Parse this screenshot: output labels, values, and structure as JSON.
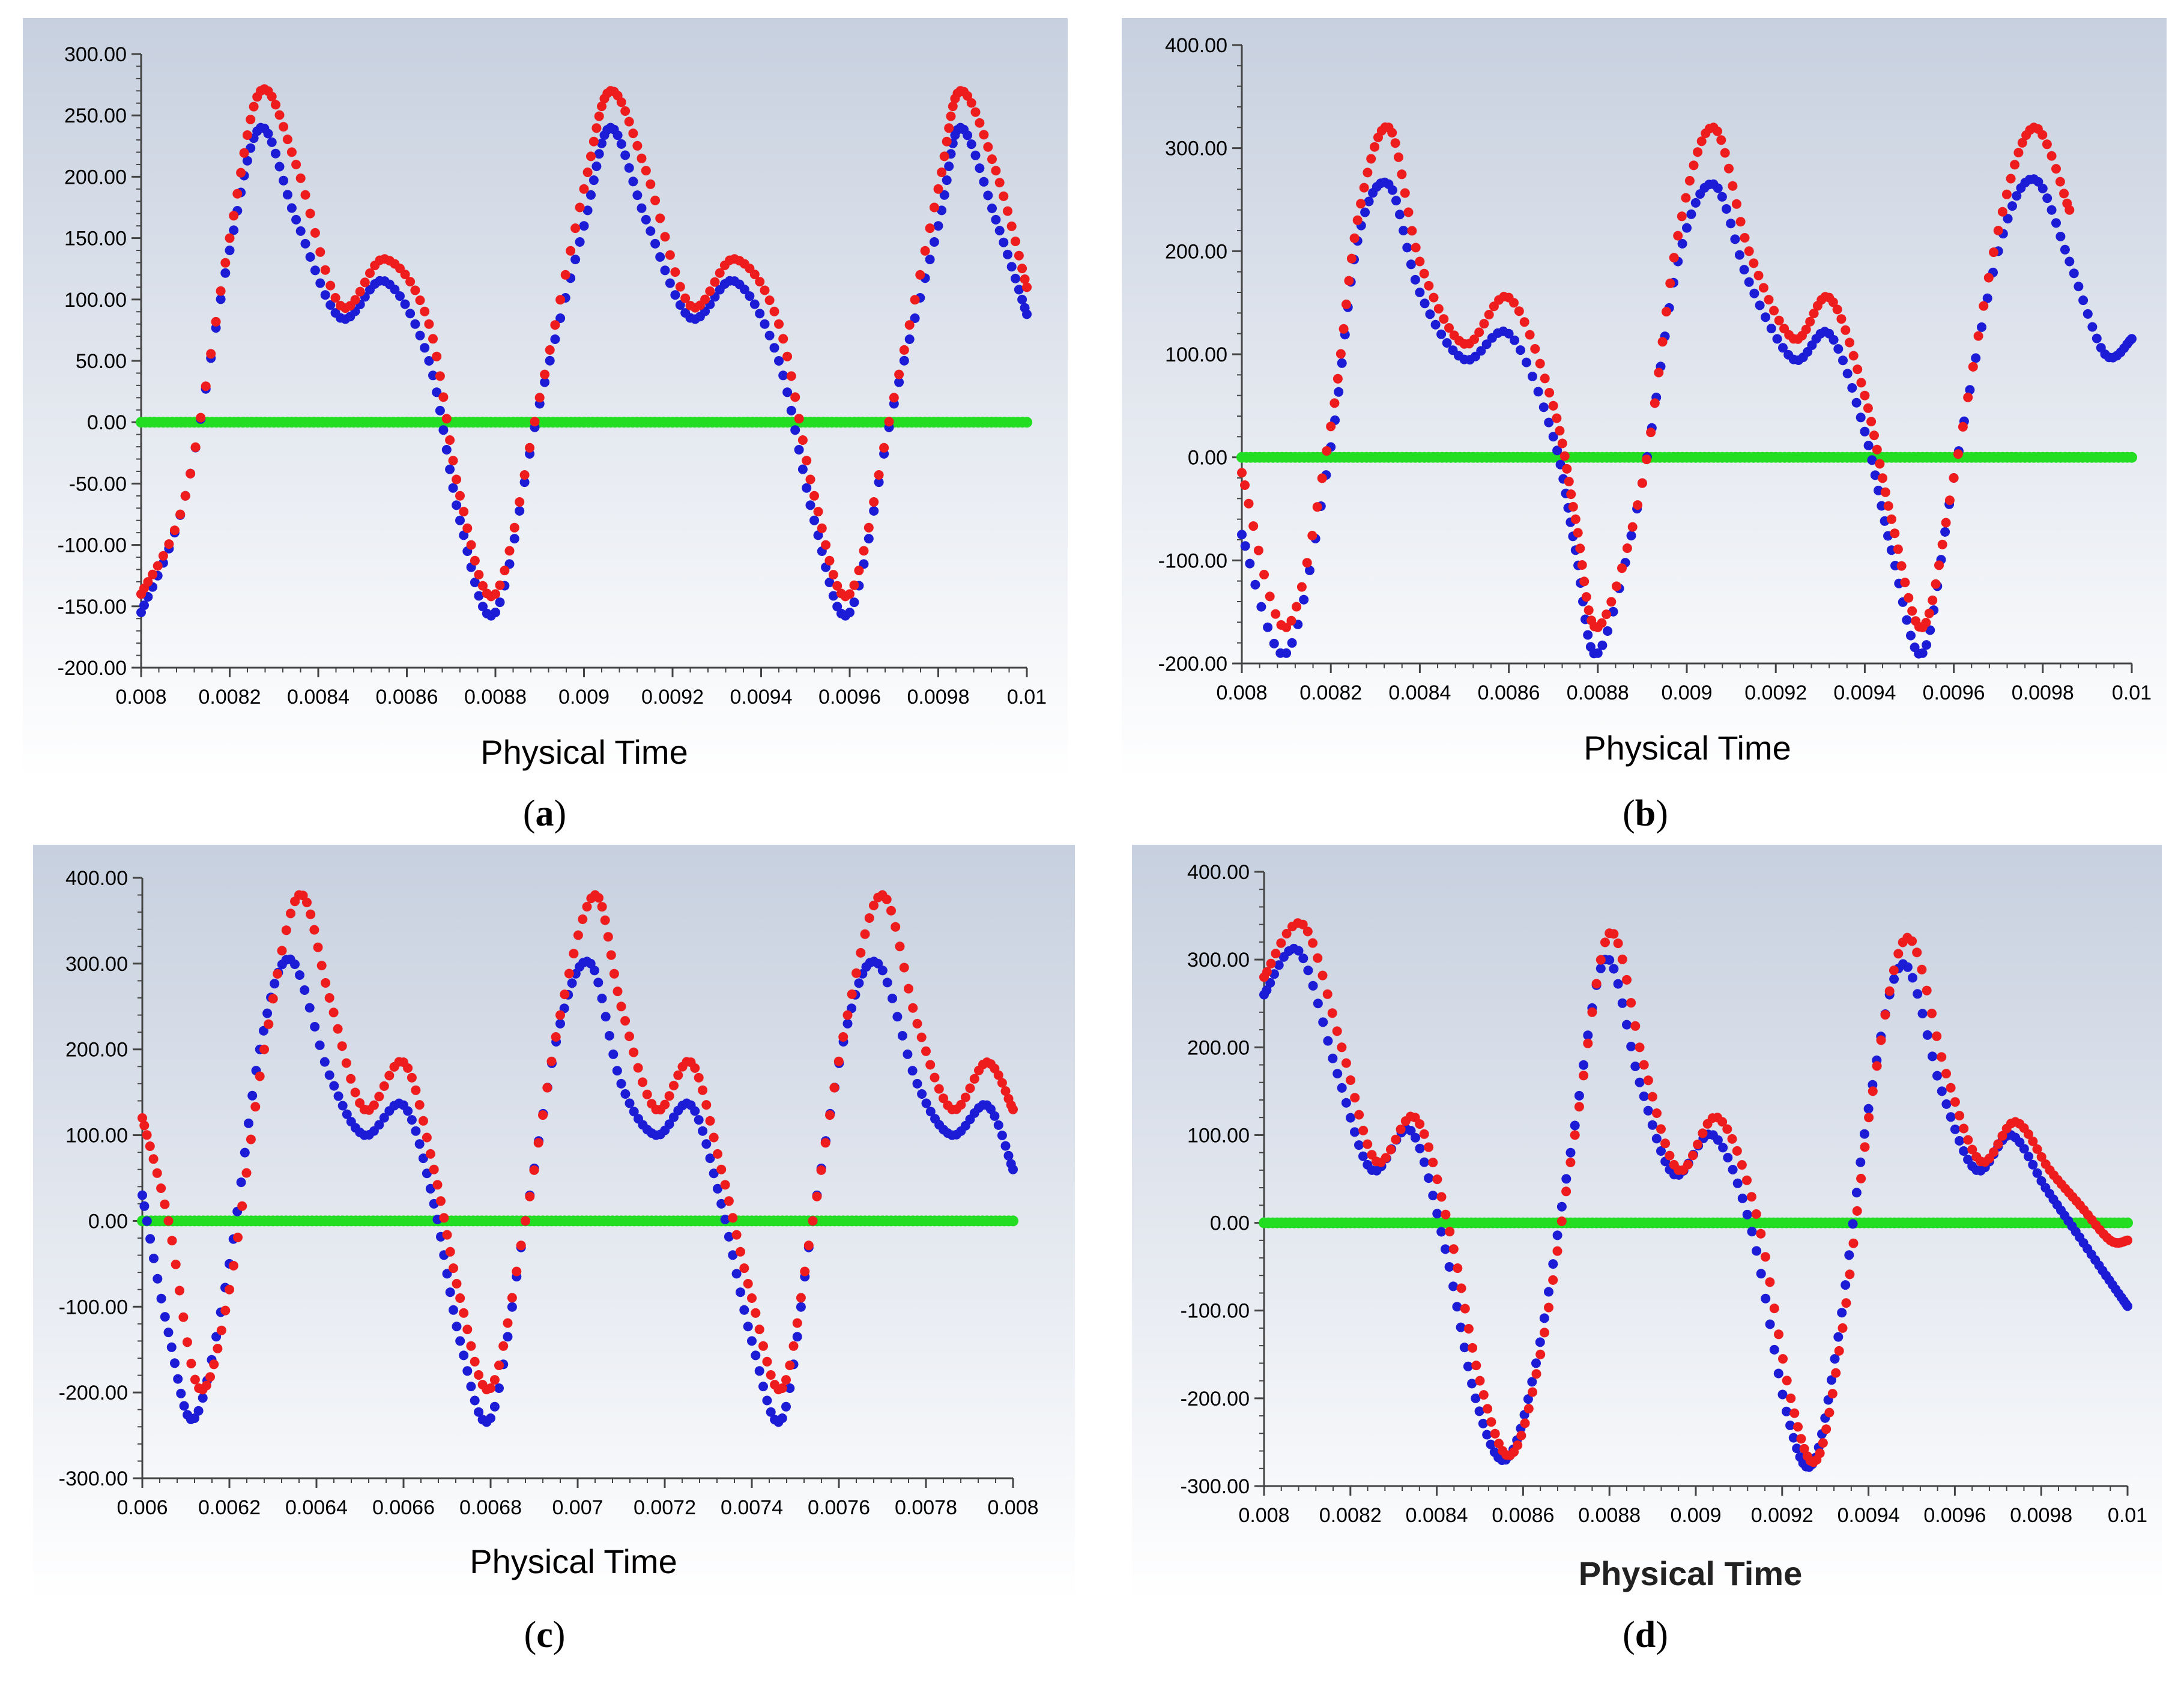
{
  "series_colors": {
    "red": "#ee1c1c",
    "blue": "#1c1cd6",
    "green": "#22dd22"
  },
  "background_colors": {
    "top": "#c9d2e0",
    "bottom": "#ffffff",
    "axis": "#444444"
  },
  "chart_data": [
    {
      "id": "a",
      "type": "scatter",
      "caption": "a",
      "xlabel": "Physical Time",
      "ylabel": "",
      "xlim": [
        0.008,
        0.01
      ],
      "ylim": [
        -200,
        300
      ],
      "xticks": [
        0.008,
        0.0082,
        0.0084,
        0.0086,
        0.0088,
        0.009,
        0.0092,
        0.0094,
        0.0096,
        0.0098,
        0.01
      ],
      "xtick_labels": [
        "0.008",
        "0.0082",
        "0.0084",
        "0.0086",
        "0.0088",
        "0.009",
        "0.0092",
        "0.0094",
        "0.0096",
        "0.0098",
        "0.01"
      ],
      "yticks": [
        300,
        250,
        200,
        150,
        100,
        50,
        0,
        -50,
        -100,
        -150,
        -200
      ],
      "ytick_labels": [
        "300.00",
        "250.00",
        "200.00",
        "150.00",
        "100.00",
        "50.00",
        "0.00",
        "-50.00",
        "-100.00",
        "-150.00",
        "-200.00"
      ],
      "series": [
        {
          "name": "red",
          "color": "red",
          "x": [
            0.008,
            0.0081,
            0.0082,
            0.00827,
            0.00835,
            0.00845,
            0.00855,
            0.00865,
            0.00872,
            0.0088,
            0.0089,
            0.009,
            0.00906,
            0.00914,
            0.00924,
            0.00934,
            0.00944,
            0.00952,
            0.0096,
            0.0097,
            0.0098,
            0.00985,
            0.00993,
            0.01
          ],
          "y": [
            -140,
            -60,
            150,
            270,
            210,
            95,
            133,
            80,
            -60,
            -140,
            20,
            190,
            270,
            205,
            95,
            133,
            80,
            -60,
            -140,
            20,
            190,
            270,
            205,
            110
          ]
        },
        {
          "name": "blue",
          "color": "blue",
          "x": [
            0.008,
            0.0081,
            0.0082,
            0.00827,
            0.00835,
            0.00845,
            0.00855,
            0.00865,
            0.00872,
            0.0088,
            0.0089,
            0.009,
            0.00906,
            0.00914,
            0.00924,
            0.00934,
            0.00944,
            0.00952,
            0.0096,
            0.0097,
            0.0098,
            0.00985,
            0.00993,
            0.01
          ],
          "y": [
            -155,
            -60,
            140,
            240,
            165,
            85,
            115,
            50,
            -80,
            -155,
            15,
            160,
            240,
            165,
            85,
            115,
            50,
            -80,
            -155,
            15,
            160,
            240,
            165,
            88
          ]
        },
        {
          "name": "green",
          "color": "green",
          "x": [
            0.008,
            0.01
          ],
          "y": [
            0,
            0
          ]
        }
      ]
    },
    {
      "id": "b",
      "type": "scatter",
      "caption": "b",
      "xlabel": "Physical Time",
      "ylabel": "",
      "xlim": [
        0.008,
        0.01
      ],
      "ylim": [
        -200,
        400
      ],
      "xticks": [
        0.008,
        0.0082,
        0.0084,
        0.0086,
        0.0088,
        0.009,
        0.0092,
        0.0094,
        0.0096,
        0.0098,
        0.01
      ],
      "xtick_labels": [
        "0.008",
        "0.0082",
        "0.0084",
        "0.0086",
        "0.0088",
        "0.009",
        "0.0092",
        "0.0094",
        "0.0096",
        "0.0098",
        "0.01"
      ],
      "yticks": [
        400,
        300,
        200,
        100,
        0,
        -100,
        -200
      ],
      "ytick_labels": [
        "400.00",
        "300.00",
        "200.00",
        "100.00",
        "0.00",
        "-100.00",
        "-200.00"
      ],
      "series": [
        {
          "name": "red",
          "color": "red",
          "x": [
            0.008,
            0.0081,
            0.0082,
            0.00826,
            0.00833,
            0.0084,
            0.0085,
            0.0086,
            0.0087,
            0.00875,
            0.0088,
            0.0089,
            0.00898,
            0.00906,
            0.00914,
            0.00924,
            0.00932,
            0.0094,
            0.00946,
            0.00953,
            0.0096,
            0.0097,
            0.00978,
            0.00986
          ],
          "y": [
            -15,
            -165,
            30,
            230,
            320,
            190,
            110,
            155,
            50,
            -60,
            -165,
            -25,
            215,
            320,
            200,
            115,
            155,
            60,
            -60,
            -165,
            -20,
            220,
            320,
            240
          ]
        },
        {
          "name": "blue",
          "color": "blue",
          "x": [
            0.008,
            0.0081,
            0.0082,
            0.00826,
            0.00833,
            0.0084,
            0.0085,
            0.0086,
            0.0087,
            0.00875,
            0.0088,
            0.0089,
            0.00898,
            0.00906,
            0.00914,
            0.00924,
            0.00932,
            0.0094,
            0.00946,
            0.00953,
            0.0096,
            0.0097,
            0.00978,
            0.00986,
            0.00994,
            0.01
          ],
          "y": [
            -75,
            -190,
            10,
            210,
            265,
            160,
            95,
            120,
            20,
            -90,
            -190,
            -25,
            190,
            265,
            170,
            95,
            120,
            25,
            -90,
            -190,
            -20,
            200,
            270,
            190,
            100,
            115
          ]
        },
        {
          "name": "green",
          "color": "green",
          "x": [
            0.008,
            0.01
          ],
          "y": [
            0,
            0
          ]
        }
      ]
    },
    {
      "id": "c",
      "type": "scatter",
      "caption": "c",
      "xlabel": "Physical Time",
      "ylabel": "",
      "xlim": [
        0.006,
        0.008
      ],
      "ylim": [
        -300,
        400
      ],
      "xticks": [
        0.006,
        0.0062,
        0.0064,
        0.0066,
        0.0068,
        0.007,
        0.0072,
        0.0074,
        0.0076,
        0.0078,
        0.008
      ],
      "xtick_labels": [
        "0.006",
        "0.0062",
        "0.0064",
        "0.0066",
        "0.0068",
        "0.007",
        "0.0072",
        "0.0074",
        "0.0076",
        "0.0078",
        "0.008"
      ],
      "yticks": [
        400,
        300,
        200,
        100,
        0,
        -100,
        -200,
        -300
      ],
      "ytick_labels": [
        "400.00",
        "300.00",
        "200.00",
        "100.00",
        "0.00",
        "-100.00",
        "-200.00",
        "-300.00"
      ],
      "series": [
        {
          "name": "red",
          "color": "red",
          "x": [
            0.006,
            0.00606,
            0.00613,
            0.0062,
            0.00628,
            0.00636,
            0.00643,
            0.00651,
            0.0066,
            0.00667,
            0.00673,
            0.0068,
            0.00688,
            0.00696,
            0.00704,
            0.0071,
            0.00718,
            0.00726,
            0.00733,
            0.0074,
            0.00747,
            0.00754,
            0.00762,
            0.0077,
            0.00778,
            0.00786,
            0.00794,
            0.008
          ],
          "y": [
            120,
            0,
            -195,
            -80,
            200,
            380,
            260,
            130,
            185,
            60,
            -90,
            -195,
            0,
            240,
            380,
            250,
            130,
            185,
            60,
            -90,
            -195,
            0,
            240,
            380,
            230,
            130,
            185,
            130
          ]
        },
        {
          "name": "blue",
          "color": "blue",
          "x": [
            0.006,
            0.00606,
            0.00612,
            0.0062,
            0.00627,
            0.00634,
            0.00643,
            0.00651,
            0.0066,
            0.00667,
            0.00673,
            0.0068,
            0.00688,
            0.00696,
            0.00703,
            0.0071,
            0.00718,
            0.00726,
            0.00733,
            0.0074,
            0.00747,
            0.00754,
            0.00762,
            0.00769,
            0.00778,
            0.00786,
            0.00794,
            0.008
          ],
          "y": [
            30,
            -130,
            -230,
            -50,
            200,
            305,
            170,
            100,
            135,
            20,
            -140,
            -230,
            0,
            230,
            300,
            160,
            100,
            135,
            20,
            -140,
            -230,
            0,
            230,
            300,
            160,
            100,
            135,
            60
          ]
        },
        {
          "name": "green",
          "color": "green",
          "x": [
            0.006,
            0.008
          ],
          "y": [
            0,
            0
          ]
        }
      ]
    },
    {
      "id": "d",
      "type": "scatter",
      "caption": "d",
      "xlabel": "Physical Time",
      "ylabel": "",
      "xlim": [
        0.008,
        0.01
      ],
      "ylim": [
        -300,
        400
      ],
      "xticks": [
        0.008,
        0.0082,
        0.0084,
        0.0086,
        0.0088,
        0.009,
        0.0092,
        0.0094,
        0.0096,
        0.0098,
        0.01
      ],
      "xtick_labels": [
        "0.008",
        "0.0082",
        "0.0084",
        "0.0086",
        "0.0088",
        "0.009",
        "0.0092",
        "0.0094",
        "0.0096",
        "0.0098",
        "0.01"
      ],
      "yticks": [
        400,
        300,
        200,
        100,
        0,
        -100,
        -200,
        -300
      ],
      "ytick_labels": [
        "400.00",
        "300.00",
        "200.00",
        "100.00",
        "0.00",
        "-100.00",
        "-200.00",
        "-300.00"
      ],
      "series": [
        {
          "name": "red",
          "color": "red",
          "x": [
            0.008,
            0.00809,
            0.00818,
            0.00826,
            0.00835,
            0.00843,
            0.0085,
            0.00857,
            0.00864,
            0.00872,
            0.0088,
            0.00888,
            0.00896,
            0.00905,
            0.00914,
            0.00922,
            0.00928,
            0.00934,
            0.00941,
            0.00949,
            0.00958,
            0.00966,
            0.00974,
            0.00982,
            0.00989,
            0.00996,
            0.01
          ],
          "y": [
            280,
            340,
            200,
            70,
            120,
            -10,
            -180,
            -265,
            -150,
            100,
            330,
            180,
            60,
            120,
            10,
            -200,
            -270,
            -120,
            150,
            325,
            170,
            70,
            115,
            60,
            20,
            -20,
            -20
          ]
        },
        {
          "name": "blue",
          "color": "blue",
          "x": [
            0.008,
            0.00808,
            0.00817,
            0.00825,
            0.00834,
            0.00842,
            0.00849,
            0.00856,
            0.00863,
            0.00871,
            0.00879,
            0.00887,
            0.00895,
            0.00904,
            0.00913,
            0.00921,
            0.00927,
            0.00933,
            0.0094,
            0.00948,
            0.00957,
            0.00965,
            0.00973,
            0.00981,
            0.00988,
            0.00995,
            0.01
          ],
          "y": [
            260,
            310,
            170,
            60,
            105,
            -30,
            -200,
            -270,
            -160,
            80,
            300,
            160,
            55,
            100,
            -10,
            -215,
            -275,
            -130,
            130,
            295,
            150,
            60,
            100,
            40,
            -10,
            -60,
            -95
          ]
        },
        {
          "name": "green",
          "color": "green",
          "x": [
            0.008,
            0.01
          ],
          "y": [
            0,
            0
          ]
        }
      ]
    }
  ]
}
